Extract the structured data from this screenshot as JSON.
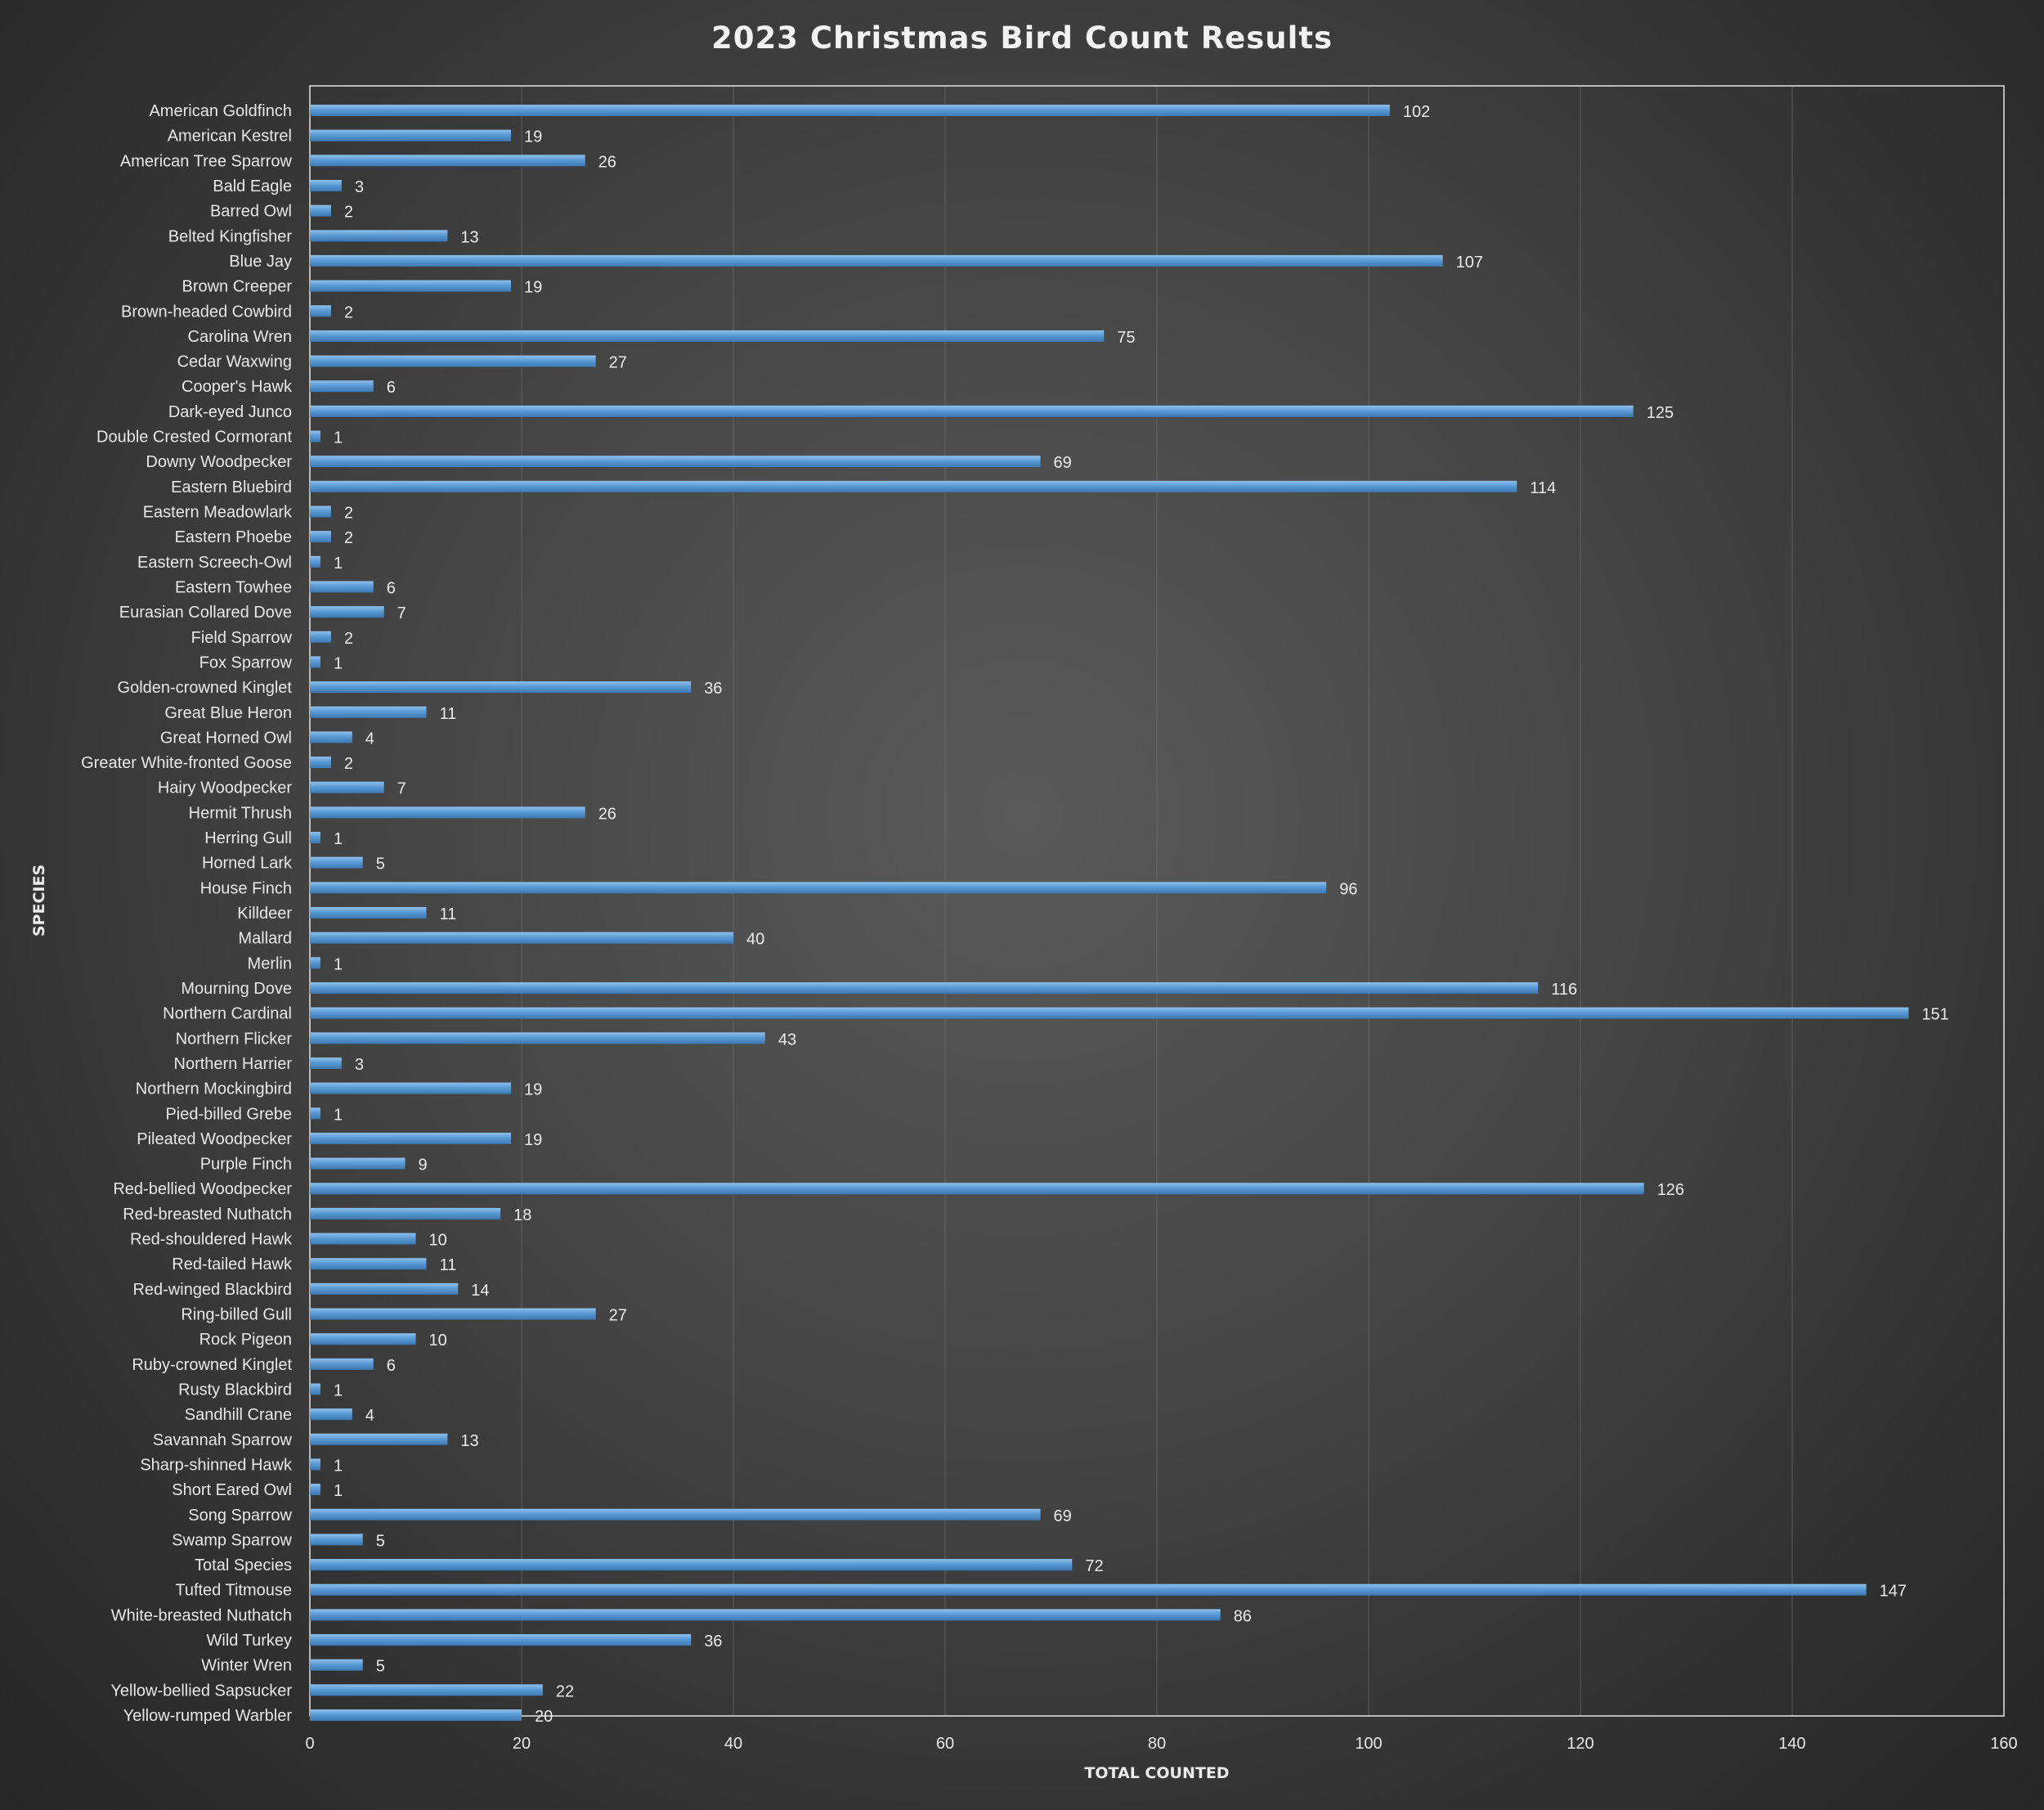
{
  "chart_data": {
    "type": "bar",
    "orientation": "horizontal",
    "title": "2023 Christmas Bird Count Results",
    "xlabel": "TOTAL COUNTED",
    "ylabel": "SPECIES",
    "xlim": [
      0,
      160
    ],
    "x_ticks": [
      0,
      20,
      40,
      60,
      80,
      100,
      120,
      140,
      160
    ],
    "grid": "vertical",
    "legend": "none",
    "bar_color": "#5b9bd5",
    "categories": [
      "American Goldfinch",
      "American Kestrel",
      "American Tree Sparrow",
      "Bald Eagle",
      "Barred Owl",
      "Belted Kingfisher",
      "Blue Jay",
      "Brown Creeper",
      "Brown-headed Cowbird",
      "Carolina Wren",
      "Cedar Waxwing",
      "Cooper's Hawk",
      "Dark-eyed Junco",
      "Double Crested Cormorant",
      "Downy Woodpecker",
      "Eastern Bluebird",
      "Eastern Meadowlark",
      "Eastern Phoebe",
      "Eastern Screech-Owl",
      "Eastern Towhee",
      "Eurasian Collared Dove",
      "Field Sparrow",
      "Fox Sparrow",
      "Golden-crowned Kinglet",
      "Great Blue Heron",
      "Great Horned Owl",
      "Greater White-fronted Goose",
      "Hairy Woodpecker",
      "Hermit Thrush",
      "Herring Gull",
      "Horned Lark",
      "House Finch",
      "Killdeer",
      "Mallard",
      "Merlin",
      "Mourning Dove",
      "Northern Cardinal",
      "Northern Flicker",
      "Northern Harrier",
      "Northern Mockingbird",
      "Pied-billed Grebe",
      "Pileated Woodpecker",
      "Purple Finch",
      "Red-bellied Woodpecker",
      "Red-breasted Nuthatch",
      "Red-shouldered Hawk",
      "Red-tailed Hawk",
      "Red-winged Blackbird",
      "Ring-billed Gull",
      "Rock Pigeon",
      "Ruby-crowned Kinglet",
      "Rusty Blackbird",
      "Sandhill Crane",
      "Savannah Sparrow",
      "Sharp-shinned Hawk",
      "Short Eared Owl",
      "Song Sparrow",
      "Swamp Sparrow",
      "Total Species",
      "Tufted Titmouse",
      "White-breasted Nuthatch",
      "Wild Turkey",
      "Winter Wren",
      "Yellow-bellied Sapsucker",
      "Yellow-rumped Warbler"
    ],
    "values": [
      102,
      19,
      26,
      3,
      2,
      13,
      107,
      19,
      2,
      75,
      27,
      6,
      125,
      1,
      69,
      114,
      2,
      2,
      1,
      6,
      7,
      2,
      1,
      36,
      11,
      4,
      2,
      7,
      26,
      1,
      5,
      96,
      11,
      40,
      1,
      116,
      151,
      43,
      3,
      19,
      1,
      19,
      9,
      126,
      18,
      10,
      11,
      14,
      27,
      10,
      6,
      1,
      4,
      13,
      1,
      1,
      69,
      5,
      72,
      147,
      86,
      36,
      5,
      22,
      20
    ]
  }
}
